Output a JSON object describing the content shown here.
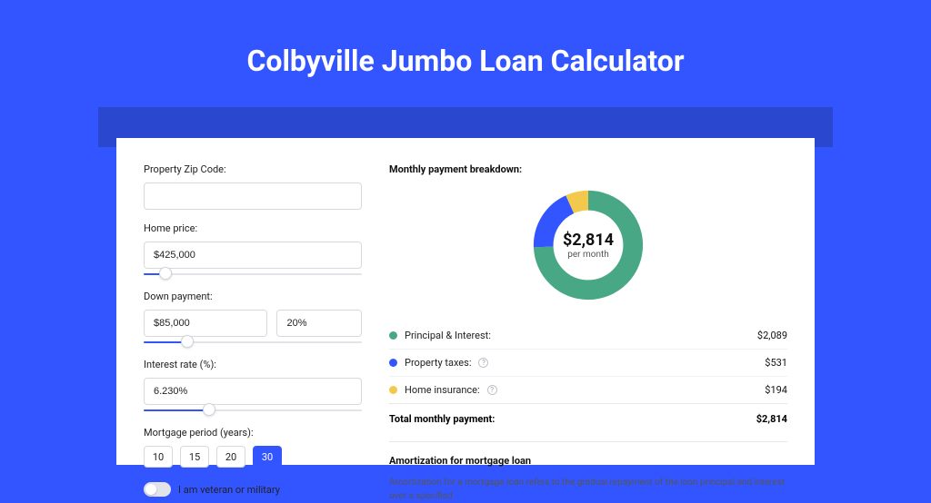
{
  "page": {
    "title": "Colbyville Jumbo Loan Calculator",
    "background_color": "#3355ff",
    "band_color": "#2a47d0",
    "card_background": "#ffffff"
  },
  "form": {
    "zip": {
      "label": "Property Zip Code:",
      "value": ""
    },
    "home_price": {
      "label": "Home price:",
      "value": "$425,000",
      "slider_pct": 10
    },
    "down_payment": {
      "label": "Down payment:",
      "amount": "$85,000",
      "percent": "20%",
      "slider_pct": 20
    },
    "interest_rate": {
      "label": "Interest rate (%):",
      "value": "6.230%",
      "slider_pct": 30
    },
    "mortgage_period": {
      "label": "Mortgage period (years):",
      "options": [
        "10",
        "15",
        "20",
        "30"
      ],
      "selected": "30"
    },
    "veteran": {
      "label": "I am veteran or military",
      "checked": false
    }
  },
  "breakdown": {
    "title": "Monthly payment breakdown:",
    "donut": {
      "center_value": "$2,814",
      "center_sub": "per month",
      "slices": [
        {
          "name": "principal_interest",
          "value": 2089,
          "color": "#48a785"
        },
        {
          "name": "property_taxes",
          "value": 531,
          "color": "#3355ff"
        },
        {
          "name": "home_insurance",
          "value": 194,
          "color": "#f2c94c"
        }
      ],
      "stroke_width": 16
    },
    "items": [
      {
        "label": "Principal & Interest:",
        "color": "#48a785",
        "value": "$2,089",
        "info": false
      },
      {
        "label": "Property taxes:",
        "color": "#3355ff",
        "value": "$531",
        "info": true
      },
      {
        "label": "Home insurance:",
        "color": "#f2c94c",
        "value": "$194",
        "info": true
      }
    ],
    "total": {
      "label": "Total monthly payment:",
      "value": "$2,814"
    }
  },
  "amortization": {
    "title": "Amortization for mortgage loan",
    "text": "Amortization for a mortgage loan refers to the gradual repayment of the loan principal and interest over a specified"
  }
}
